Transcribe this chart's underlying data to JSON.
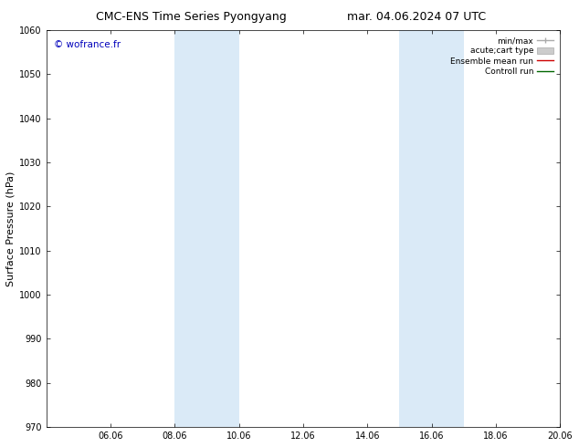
{
  "title_left": "CMC-ENS Time Series Pyongyang",
  "title_right": "mar. 04.06.2024 07 UTC",
  "ylabel": "Surface Pressure (hPa)",
  "ylim": [
    970,
    1060
  ],
  "yticks": [
    970,
    980,
    990,
    1000,
    1010,
    1020,
    1030,
    1040,
    1050,
    1060
  ],
  "xlim": [
    0,
    16
  ],
  "xtick_labels": [
    "06.06",
    "08.06",
    "10.06",
    "12.06",
    "14.06",
    "16.06",
    "18.06",
    "20.06"
  ],
  "xtick_positions": [
    2,
    4,
    6,
    8,
    10,
    12,
    14,
    16
  ],
  "shaded_bands": [
    {
      "x_start": 4,
      "x_end": 6
    },
    {
      "x_start": 11,
      "x_end": 13
    }
  ],
  "band_color": "#daeaf7",
  "background_color": "#ffffff",
  "watermark": "© wofrance.fr",
  "watermark_color": "#0000bb",
  "legend_entries": [
    {
      "label": "min/max",
      "color": "#aaaaaa",
      "style": "minmax"
    },
    {
      "label": "acute;cart type",
      "color": "#cccccc",
      "style": "box"
    },
    {
      "label": "Ensemble mean run",
      "color": "#cc0000",
      "style": "line"
    },
    {
      "label": "Controll run",
      "color": "#006600",
      "style": "line"
    }
  ],
  "title_fontsize": 9,
  "ylabel_fontsize": 8,
  "tick_fontsize": 7,
  "legend_fontsize": 6.5,
  "watermark_fontsize": 7.5
}
